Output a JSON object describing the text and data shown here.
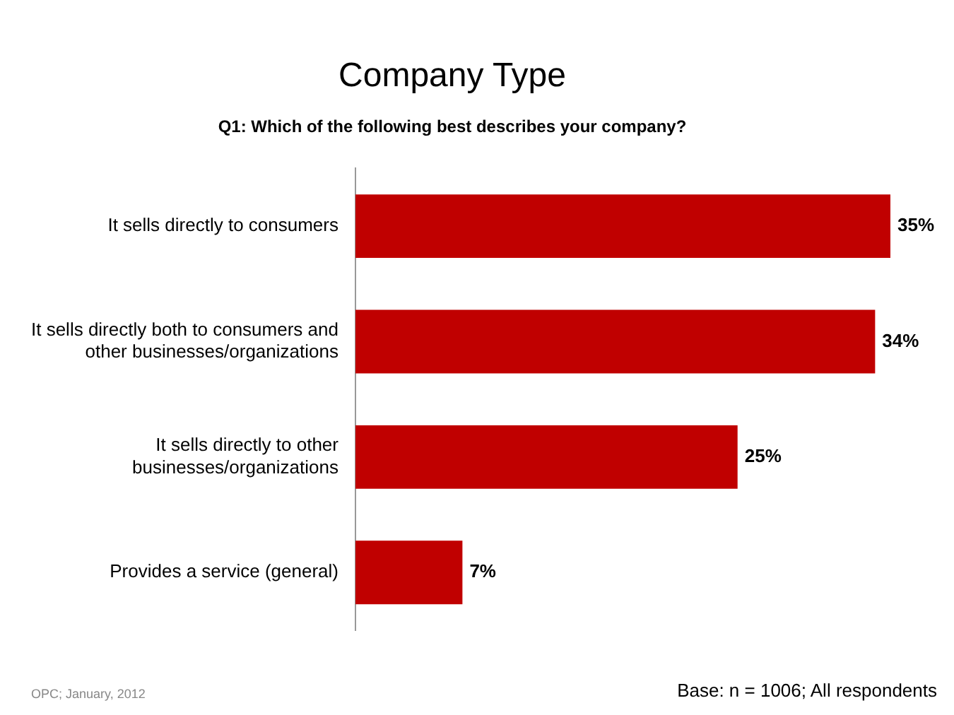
{
  "chart_data": {
    "type": "bar",
    "orientation": "horizontal",
    "title": "Company Type",
    "subtitle": "Q1: Which of the following best describes your company?",
    "categories": [
      "It sells directly to consumers",
      "It sells directly both to consumers and other businesses/organizations",
      "It sells directly to other businesses/organizations",
      "Provides a service (general)"
    ],
    "values": [
      35,
      34,
      25,
      7
    ],
    "color": "#c00000",
    "data_labels": true,
    "value_labels": [
      "35%",
      "34%",
      "25%",
      "7%"
    ],
    "grid": false,
    "legend": false,
    "tick_labels": "y",
    "annotations": [
      "OPC; January, 2012",
      "Base: n = 1006; All respondents"
    ]
  }
}
